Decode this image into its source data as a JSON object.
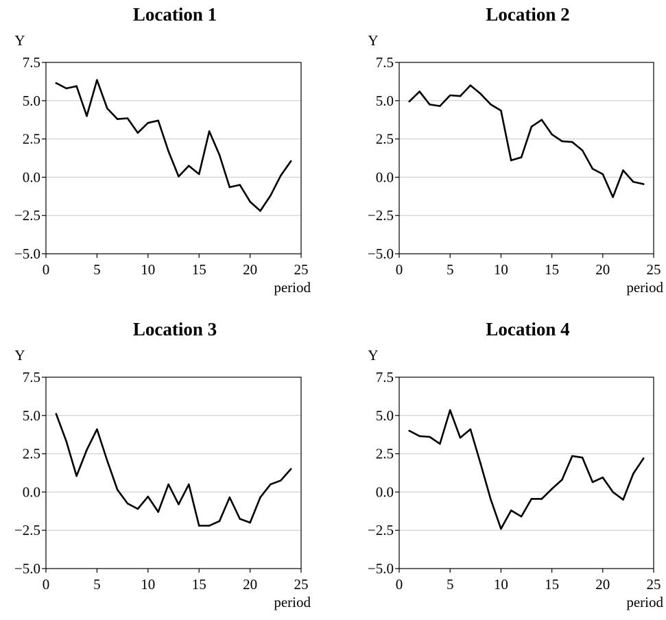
{
  "chart_data": [
    {
      "type": "line",
      "title": "Location 1",
      "ylabel": "Y",
      "xlabel": "period",
      "xlim": [
        0,
        25
      ],
      "ylim": [
        -5.0,
        7.5
      ],
      "xticks": [
        "0",
        "5",
        "10",
        "15",
        "20",
        "25"
      ],
      "yticks": [
        "7.5",
        "5.0",
        "2.5",
        "0.0",
        "−2.5",
        "−5.0"
      ],
      "grid": "horizontal",
      "series": [
        {
          "x": [
            1,
            2,
            3,
            4,
            5,
            6,
            7,
            8,
            9,
            10,
            11,
            12,
            13,
            14,
            15,
            16,
            17,
            18,
            19,
            20,
            21,
            22,
            23,
            24
          ],
          "values": [
            6.15,
            5.8,
            5.95,
            4.0,
            6.35,
            4.5,
            3.8,
            3.85,
            2.9,
            3.55,
            3.7,
            1.7,
            0.05,
            0.75,
            0.2,
            3.0,
            1.45,
            -0.65,
            -0.5,
            -1.6,
            -2.2,
            -1.2,
            0.1,
            1.05
          ]
        }
      ]
    },
    {
      "type": "line",
      "title": "Location 2",
      "ylabel": "Y",
      "xlabel": "period",
      "xlim": [
        0,
        25
      ],
      "ylim": [
        -5.0,
        7.5
      ],
      "xticks": [
        "0",
        "5",
        "10",
        "15",
        "20",
        "25"
      ],
      "yticks": [
        "7.5",
        "5.0",
        "2.5",
        "0.0",
        "−2.5",
        "−5.0"
      ],
      "grid": "horizontal",
      "series": [
        {
          "x": [
            1,
            2,
            3,
            4,
            5,
            6,
            7,
            8,
            9,
            10,
            11,
            12,
            13,
            14,
            15,
            16,
            17,
            18,
            19,
            20,
            21,
            22,
            23,
            24
          ],
          "values": [
            4.95,
            5.6,
            4.75,
            4.65,
            5.35,
            5.3,
            6.0,
            5.45,
            4.75,
            4.35,
            1.1,
            1.3,
            3.3,
            3.75,
            2.8,
            2.35,
            2.3,
            1.75,
            0.55,
            0.2,
            -1.3,
            0.45,
            -0.3,
            -0.45
          ]
        }
      ]
    },
    {
      "type": "line",
      "title": "Location 3",
      "ylabel": "Y",
      "xlabel": "period",
      "xlim": [
        0,
        25
      ],
      "ylim": [
        -5.0,
        7.5
      ],
      "xticks": [
        "0",
        "5",
        "10",
        "15",
        "20",
        "25"
      ],
      "yticks": [
        "7.5",
        "5.0",
        "2.5",
        "0.0",
        "−2.5",
        "−5.0"
      ],
      "grid": "horizontal",
      "series": [
        {
          "x": [
            1,
            2,
            3,
            4,
            5,
            6,
            7,
            8,
            9,
            10,
            11,
            12,
            13,
            14,
            15,
            16,
            17,
            18,
            19,
            20,
            21,
            22,
            23,
            24
          ],
          "values": [
            5.1,
            3.3,
            1.05,
            2.75,
            4.1,
            2.05,
            0.15,
            -0.75,
            -1.1,
            -0.3,
            -1.3,
            0.5,
            -0.8,
            0.5,
            -2.2,
            -2.2,
            -1.9,
            -0.35,
            -1.75,
            -2.0,
            -0.35,
            0.5,
            0.75,
            1.5
          ]
        }
      ]
    },
    {
      "type": "line",
      "title": "Location 4",
      "ylabel": "Y",
      "xlabel": "period",
      "xlim": [
        0,
        25
      ],
      "ylim": [
        -5.0,
        7.5
      ],
      "xticks": [
        "0",
        "5",
        "10",
        "15",
        "20",
        "25"
      ],
      "yticks": [
        "7.5",
        "5.0",
        "2.5",
        "0.0",
        "−2.5",
        "−5.0"
      ],
      "grid": "horizontal",
      "series": [
        {
          "x": [
            1,
            2,
            3,
            4,
            5,
            6,
            7,
            8,
            9,
            10,
            11,
            12,
            13,
            14,
            15,
            16,
            17,
            18,
            19,
            20,
            21,
            22,
            23,
            24
          ],
          "values": [
            4.0,
            3.65,
            3.6,
            3.15,
            5.35,
            3.55,
            4.1,
            1.85,
            -0.5,
            -2.4,
            -1.2,
            -1.6,
            -0.45,
            -0.45,
            0.2,
            0.8,
            2.35,
            2.25,
            0.65,
            0.95,
            0.0,
            -0.5,
            1.2,
            2.2
          ]
        }
      ]
    }
  ],
  "style": {
    "line_color": "#000000",
    "grid_color": "#c8c8c8",
    "axis_color": "#000000"
  }
}
